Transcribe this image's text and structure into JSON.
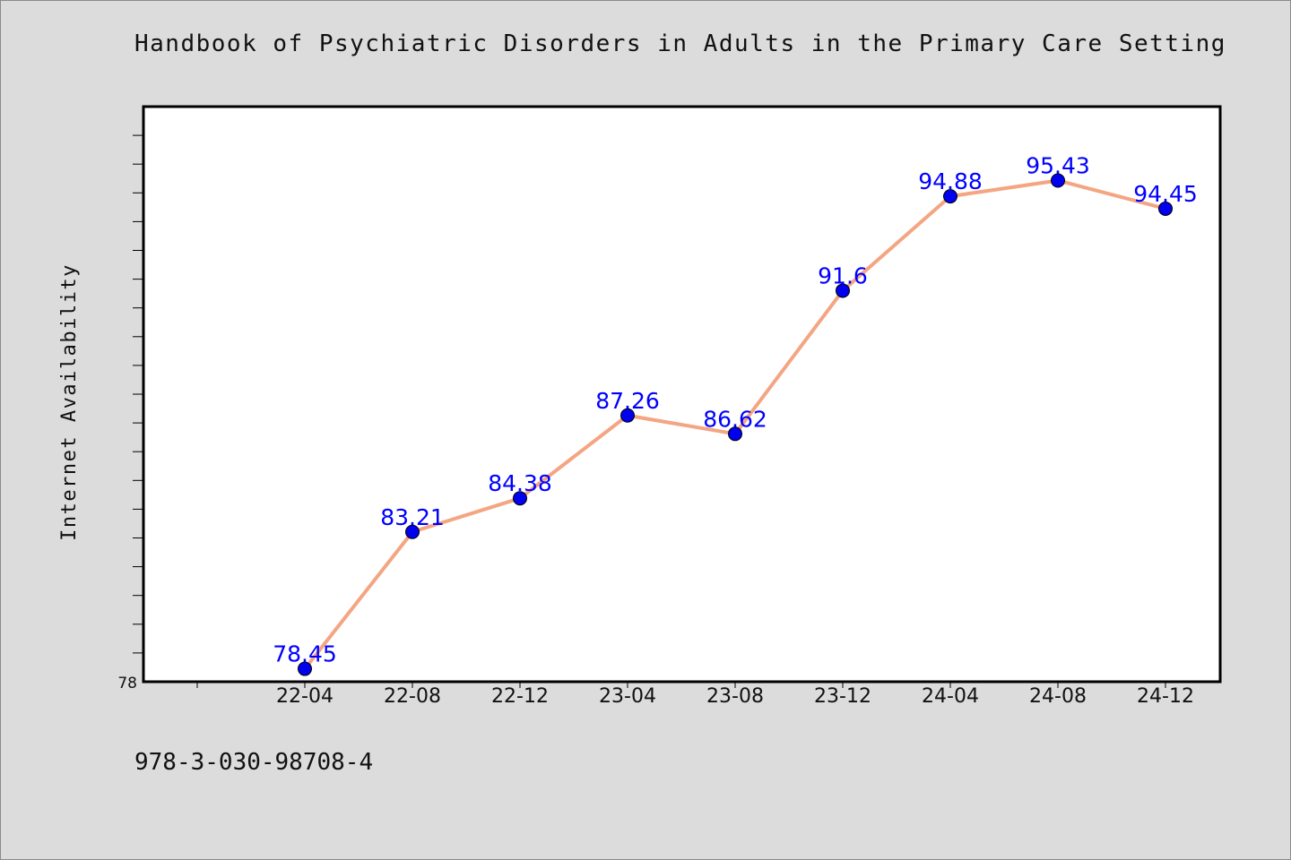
{
  "title": "Handbook of Psychiatric Disorders in Adults in the Primary Care Setting",
  "footer": "978-3-030-98708-4",
  "chart_data": {
    "type": "line",
    "title": "Handbook of Psychiatric Disorders in Adults in the Primary Care Setting",
    "xlabel": "",
    "ylabel": "Internet Availability",
    "categories": [
      "22-04",
      "22-08",
      "22-12",
      "23-04",
      "23-08",
      "23-12",
      "24-04",
      "24-08",
      "24-12"
    ],
    "series": [
      {
        "values": [
          78.45,
          83.21,
          84.38,
          87.26,
          86.62,
          91.6,
          94.88,
          95.43,
          94.45
        ],
        "labels": [
          "78.45",
          "83.21",
          "84.38",
          "87.26",
          "86.62",
          "91.6",
          "94.88",
          "95.43",
          "94.45"
        ],
        "line_color": "#f4a582",
        "marker_color": "#0000ee"
      }
    ],
    "ylim": [
      78,
      98
    ],
    "y_tick_labels": [
      "78"
    ],
    "grid": false,
    "legend": "none"
  }
}
